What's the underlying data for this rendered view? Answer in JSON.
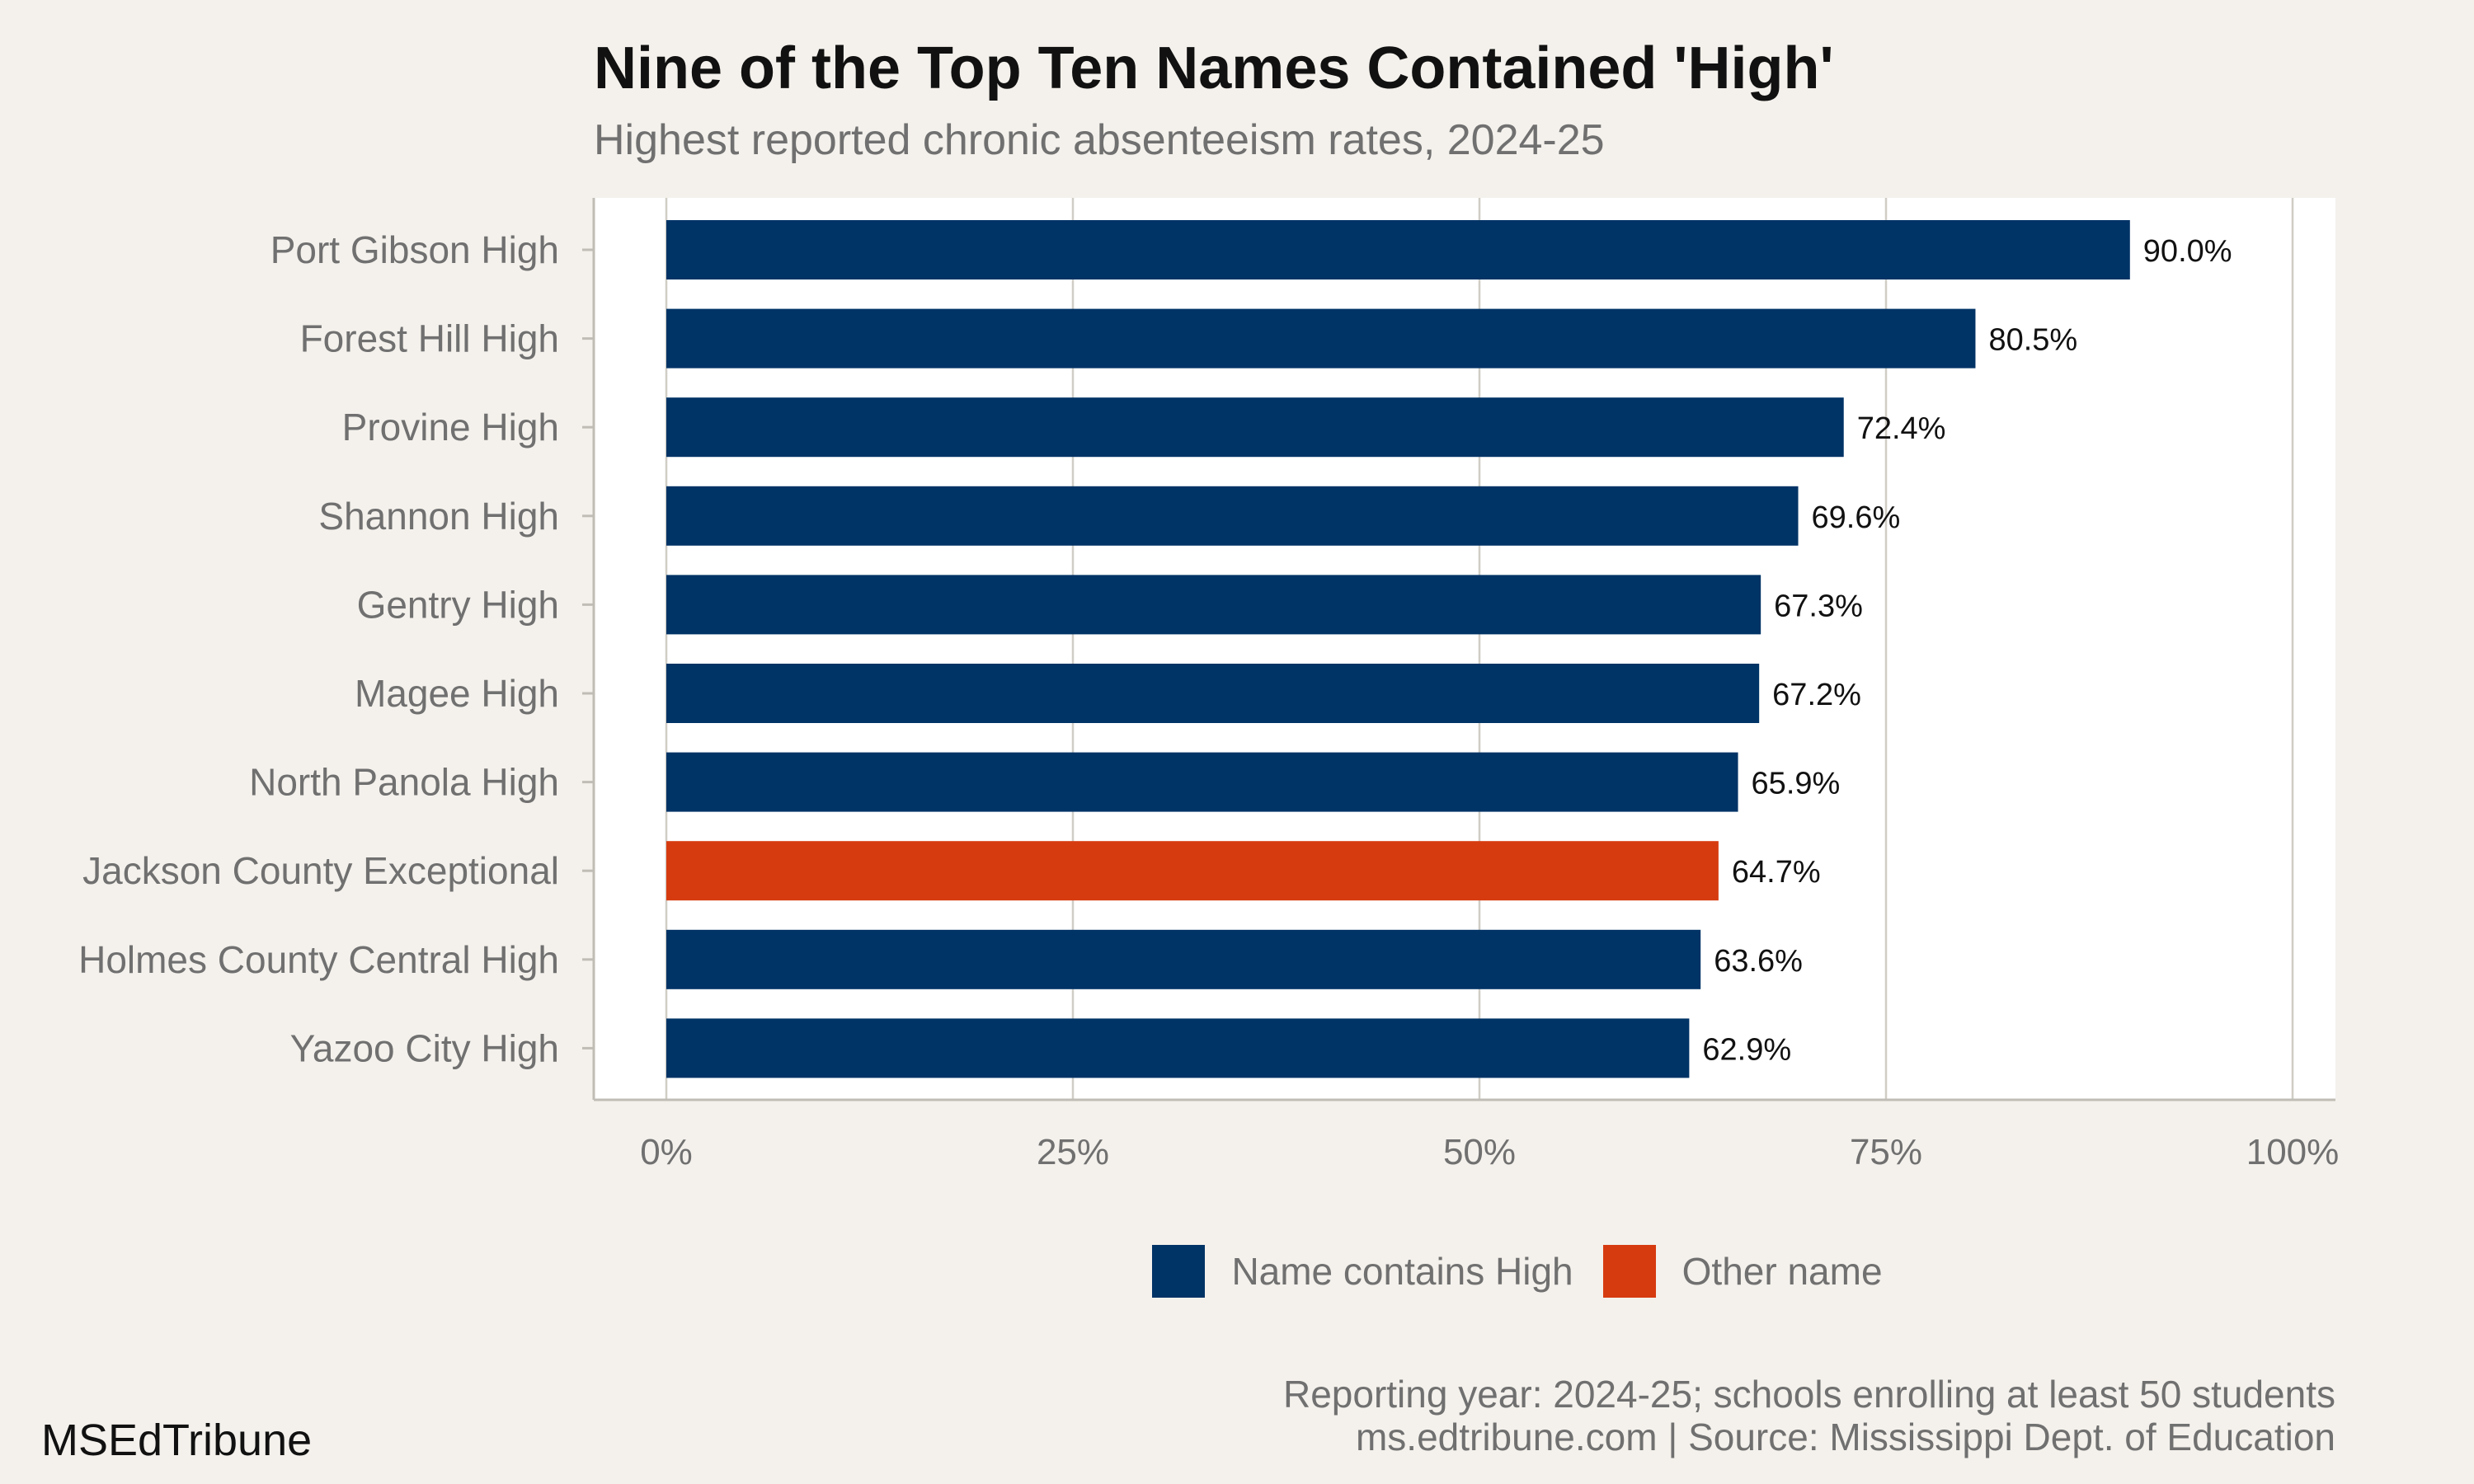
{
  "header": {
    "title": "Nine of the Top Ten Names Contained 'High'",
    "subtitle": "Highest reported chronic absenteeism rates, 2024-25"
  },
  "chart_data": {
    "type": "bar",
    "orientation": "horizontal",
    "title": "Nine of the Top Ten Names Contained 'High'",
    "subtitle": "Highest reported chronic absenteeism rates, 2024-25",
    "xlabel": "",
    "ylabel": "",
    "xlim": [
      0,
      100
    ],
    "x_ticks": [
      {
        "value": 0,
        "label": "0%"
      },
      {
        "value": 25,
        "label": "25%"
      },
      {
        "value": 50,
        "label": "50%"
      },
      {
        "value": 75,
        "label": "75%"
      },
      {
        "value": 100,
        "label": "100%"
      }
    ],
    "grid": "vertical",
    "legend_position": "bottom",
    "categories": [
      "Port Gibson High",
      "Forest Hill High",
      "Provine High",
      "Shannon High",
      "Gentry High",
      "Magee High",
      "North Panola High",
      "Jackson County Exceptional",
      "Holmes County Central High",
      "Yazoo City High"
    ],
    "values": [
      90.0,
      80.5,
      72.4,
      69.6,
      67.3,
      67.2,
      65.9,
      64.7,
      63.6,
      62.9
    ],
    "data_labels": [
      "90.0%",
      "80.5%",
      "72.4%",
      "69.6%",
      "67.3%",
      "67.2%",
      "65.9%",
      "64.7%",
      "63.6%",
      "62.9%"
    ],
    "groups": [
      "Name contains High",
      "Name contains High",
      "Name contains High",
      "Name contains High",
      "Name contains High",
      "Name contains High",
      "Name contains High",
      "Other name",
      "Name contains High",
      "Name contains High"
    ],
    "legend": [
      {
        "name": "Name contains High",
        "color": "#003366"
      },
      {
        "name": "Other name",
        "color": "#d63b10"
      }
    ]
  },
  "caption": {
    "line1": "Reporting year: 2024-25; schools enrolling at least 50 students",
    "line2": "ms.edtribune.com | Source: Mississippi Dept. of Education"
  },
  "brand": "MSEdTribune",
  "colors": {
    "background": "#f4f1ec",
    "panel": "#ffffff",
    "grid": "#d0cdc6",
    "axis": "#c0bdb6",
    "label_text": "#707070",
    "value_text": "#111111"
  }
}
